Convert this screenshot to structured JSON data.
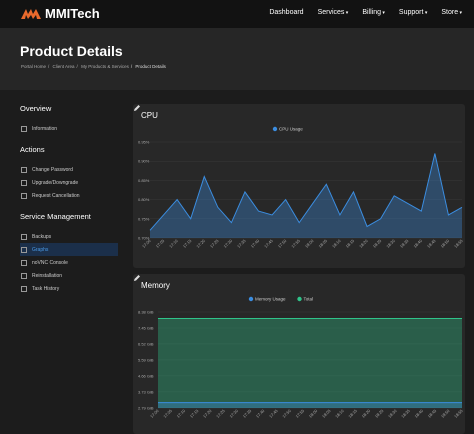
{
  "navbar": {
    "brand": "MMITech",
    "links": [
      "Dashboard",
      "Services",
      "Billing",
      "Support",
      "Store"
    ]
  },
  "header": {
    "title": "Product Details",
    "breadcrumb": [
      "Portal Home",
      "Client Area",
      "My Products & Services",
      "Product Details"
    ]
  },
  "sidebar": {
    "sections": [
      {
        "title": "Overview",
        "items": [
          "Information"
        ]
      },
      {
        "title": "Actions",
        "items": [
          "Change Password",
          "Upgrade/Downgrade",
          "Request Cancellation"
        ]
      },
      {
        "title": "Service Management",
        "items": [
          "Backups",
          "Graphs",
          "noVNC Console",
          "Reinstallation",
          "Task History"
        ]
      }
    ]
  },
  "panels": [
    {
      "title": "CPU",
      "chart_data": {
        "type": "area",
        "categories": [
          "17:00",
          "17:05",
          "17:10",
          "17:15",
          "17:20",
          "17:25",
          "17:30",
          "17:35",
          "17:40",
          "17:45",
          "17:50",
          "17:55",
          "18:00",
          "18:05",
          "18:10",
          "18:15",
          "18:20",
          "18:25",
          "18:30",
          "18:35",
          "18:40",
          "18:45",
          "18:50",
          "18:55"
        ],
        "series": [
          {
            "name": "CPU Usage",
            "color": "#3b8de0",
            "values": [
              0.72,
              0.76,
              0.8,
              0.75,
              0.86,
              0.78,
              0.74,
              0.82,
              0.77,
              0.76,
              0.8,
              0.74,
              0.79,
              0.84,
              0.76,
              0.82,
              0.73,
              0.75,
              0.81,
              0.79,
              0.77,
              0.92,
              0.76,
              0.78
            ]
          }
        ],
        "ylim": [
          0.7,
          0.95
        ],
        "yticks": [
          {
            "value": 0.7,
            "label": "0.70%"
          },
          {
            "value": 0.75,
            "label": "0.75%"
          },
          {
            "value": 0.8,
            "label": "0.80%"
          },
          {
            "value": 0.85,
            "label": "0.85%"
          },
          {
            "value": 0.9,
            "label": "0.90%"
          },
          {
            "value": 0.95,
            "label": "0.95%"
          }
        ]
      }
    },
    {
      "title": "Memory",
      "chart_data": {
        "type": "area",
        "categories": [
          "17:00",
          "17:05",
          "17:10",
          "17:15",
          "17:20",
          "17:25",
          "17:30",
          "17:35",
          "17:40",
          "17:45",
          "17:50",
          "17:55",
          "18:00",
          "18:05",
          "18:10",
          "18:15",
          "18:20",
          "18:25",
          "18:30",
          "18:35",
          "18:40",
          "18:45",
          "18:50",
          "18:55"
        ],
        "series": [
          {
            "name": "Memory Usage",
            "color": "#3b8de0",
            "values": [
              3.1,
              3.1,
              3.1,
              3.1,
              3.1,
              3.1,
              3.1,
              3.1,
              3.1,
              3.1,
              3.1,
              3.1,
              3.1,
              3.1,
              3.1,
              3.1,
              3.1,
              3.1,
              3.1,
              3.1,
              3.1,
              3.1,
              3.1,
              3.1
            ]
          },
          {
            "name": "Total",
            "color": "#2fc48a",
            "values": [
              8.0,
              8.0,
              8.0,
              8.0,
              8.0,
              8.0,
              8.0,
              8.0,
              8.0,
              8.0,
              8.0,
              8.0,
              8.0,
              8.0,
              8.0,
              8.0,
              8.0,
              8.0,
              8.0,
              8.0,
              8.0,
              8.0,
              8.0,
              8.0
            ]
          }
        ],
        "ylim": [
          2.79,
          8.38
        ],
        "yticks": [
          {
            "value": 2.79,
            "label": "2.79 GiB"
          },
          {
            "value": 3.73,
            "label": "3.73 GiB"
          },
          {
            "value": 4.66,
            "label": "4.66 GiB"
          },
          {
            "value": 5.59,
            "label": "5.59 GiB"
          },
          {
            "value": 6.52,
            "label": "6.52 GiB"
          },
          {
            "value": 7.45,
            "label": "7.45 GiB"
          },
          {
            "value": 8.38,
            "label": "8.38 GiB"
          }
        ]
      }
    }
  ]
}
